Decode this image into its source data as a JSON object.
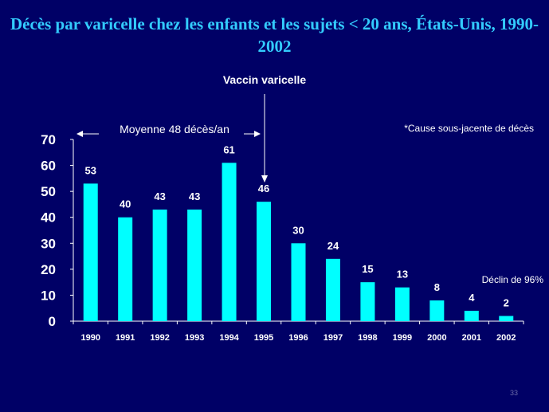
{
  "slide": {
    "title": "Décès par varicelle chez les enfants et les sujets < 20 ans, États-Unis, 1990-2002",
    "vaccine_label": "Vaccin varicelle",
    "average_label": "Moyenne 48 décès/an",
    "cause_note": "*Cause sous-jacente de décès",
    "decline_note": "Déclin de 96%",
    "slide_number": "33",
    "colors": {
      "background": "#000066",
      "title": "#33CCFF",
      "bars": "#00FFFF",
      "text": "#FFFFFF"
    }
  },
  "chart_data": {
    "type": "bar",
    "title": "Décès par varicelle chez les enfants et les sujets < 20 ans, États-Unis, 1990-2002",
    "xlabel": "",
    "ylabel": "",
    "categories": [
      "1990",
      "1991",
      "1992",
      "1993",
      "1994",
      "1995",
      "1996",
      "1997",
      "1998",
      "1999",
      "2000",
      "2001",
      "2002"
    ],
    "values": [
      53,
      40,
      43,
      43,
      61,
      46,
      30,
      24,
      15,
      13,
      8,
      4,
      2
    ],
    "ylim": [
      0,
      70
    ],
    "yticks": [
      0,
      10,
      20,
      30,
      40,
      50,
      60,
      70
    ],
    "grid": false,
    "legend": "none",
    "data_labels": true,
    "annotations": [
      {
        "text": "Vaccin varicelle",
        "points_to": "1995"
      },
      {
        "text": "Moyenne 48 décès/an",
        "spans": [
          "1990",
          "1995"
        ]
      },
      {
        "text": "*Cause sous-jacente de décès",
        "placement": "top-right"
      },
      {
        "text": "Déclin de 96%",
        "placement": "right"
      }
    ]
  }
}
